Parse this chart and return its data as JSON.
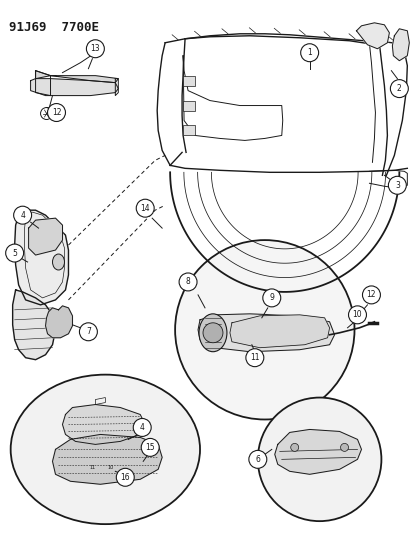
{
  "title": "91J69  7700E",
  "bg_color": "#ffffff",
  "line_color": "#1a1a1a",
  "fig_width": 4.14,
  "fig_height": 5.33,
  "dpi": 100
}
